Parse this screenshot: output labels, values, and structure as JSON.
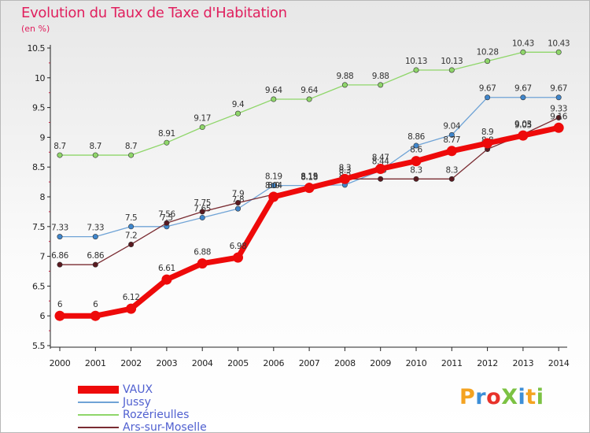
{
  "header": {
    "title": "Evolution du Taux de Taxe d'Habitation",
    "unit": "(en %)"
  },
  "logo": {
    "text": "ProXiti",
    "letters": [
      {
        "ch": "P",
        "color": "#f4a321"
      },
      {
        "ch": "r",
        "color": "#3d8fd8"
      },
      {
        "ch": "o",
        "color": "#e8322a"
      },
      {
        "ch": "X",
        "color": "#7cc243"
      },
      {
        "ch": "i",
        "color": "#3d8fd8"
      },
      {
        "ch": "t",
        "color": "#f4a321"
      },
      {
        "ch": "i",
        "color": "#7cc243"
      }
    ]
  },
  "chart_data": {
    "type": "line",
    "title": "Evolution du Taux de Taxe d'Habitation",
    "ylabel": "(en %)",
    "xlabel": "",
    "x": [
      "2000",
      "2001",
      "2002",
      "2003",
      "2004",
      "2005",
      "2006",
      "2007",
      "2008",
      "2009",
      "2010",
      "2011",
      "2012",
      "2013",
      "2014"
    ],
    "ylim": [
      5.5,
      10.5
    ],
    "yticks": [
      "5.5",
      "6",
      "6.5",
      "7",
      "7.5",
      "8",
      "8.5",
      "9",
      "9.5",
      "10",
      "10.5"
    ],
    "grid": false,
    "legend_position": "bottom-left",
    "series": [
      {
        "name": "Rozérieulles",
        "color": "#8fd66a",
        "marker": "#8fd66a",
        "width": 1.3,
        "radius": 3.2,
        "values": [
          8.7,
          8.7,
          8.7,
          8.91,
          9.17,
          9.4,
          9.64,
          9.64,
          9.88,
          9.88,
          10.13,
          10.13,
          10.28,
          10.43,
          10.43
        ],
        "labels": [
          "8.7",
          "8.7",
          "8.7",
          "8.91",
          "9.17",
          "9.4",
          "9.64",
          "9.64",
          "9.88",
          "9.88",
          "10.13",
          "10.13",
          "10.28",
          "10.43",
          "10.43"
        ]
      },
      {
        "name": "Jussy",
        "color": "#6fa3d6",
        "marker": "#3f86cc",
        "width": 1.3,
        "radius": 3.2,
        "values": [
          7.33,
          7.33,
          7.5,
          7.5,
          7.65,
          7.8,
          8.19,
          8.19,
          8.2,
          8.44,
          8.86,
          9.04,
          9.67,
          9.67,
          9.67
        ],
        "labels": [
          "7.33",
          "7.33",
          "7.5",
          "7.5",
          "7.65",
          "7.8",
          "8.19",
          "8.19",
          "8.2",
          "8.44",
          "8.86",
          "9.04",
          "9.67",
          "9.67",
          "9.67"
        ]
      },
      {
        "name": "Ars-sur-Moselle",
        "color": "#7a2c32",
        "marker": "#5a1a20",
        "width": 1.3,
        "radius": 3.2,
        "values": [
          6.86,
          6.86,
          7.2,
          7.56,
          7.75,
          7.9,
          8.04,
          8.18,
          8.3,
          8.3,
          8.3,
          8.3,
          8.8,
          9.05,
          9.33
        ],
        "labels": [
          "6.86",
          "6.86",
          "7.2",
          "7.56",
          "7.75",
          "7.9",
          "8.04",
          "8.18",
          "8.3",
          "8.3",
          "8.3",
          "8.3",
          "8.8",
          "9.05",
          "9.33"
        ]
      },
      {
        "name": "VAUX",
        "color": "#ee0a0a",
        "marker": "#ee0a0a",
        "width": 7,
        "radius": 6.5,
        "values": [
          6,
          6,
          6.12,
          6.61,
          6.88,
          6.98,
          8.0,
          8.15,
          8.3,
          8.47,
          8.6,
          8.77,
          8.9,
          9.03,
          9.16
        ],
        "labels": [
          "6",
          "6",
          "6.12",
          "6.61",
          "6.88",
          "6.98",
          "8.0",
          "8.15",
          "8.3",
          "8.47",
          "8.6",
          "8.77",
          "8.9",
          "9.03",
          "9.16"
        ]
      }
    ],
    "legend_order": [
      "VAUX",
      "Jussy",
      "Rozérieulles",
      "Ars-sur-Moselle"
    ]
  }
}
